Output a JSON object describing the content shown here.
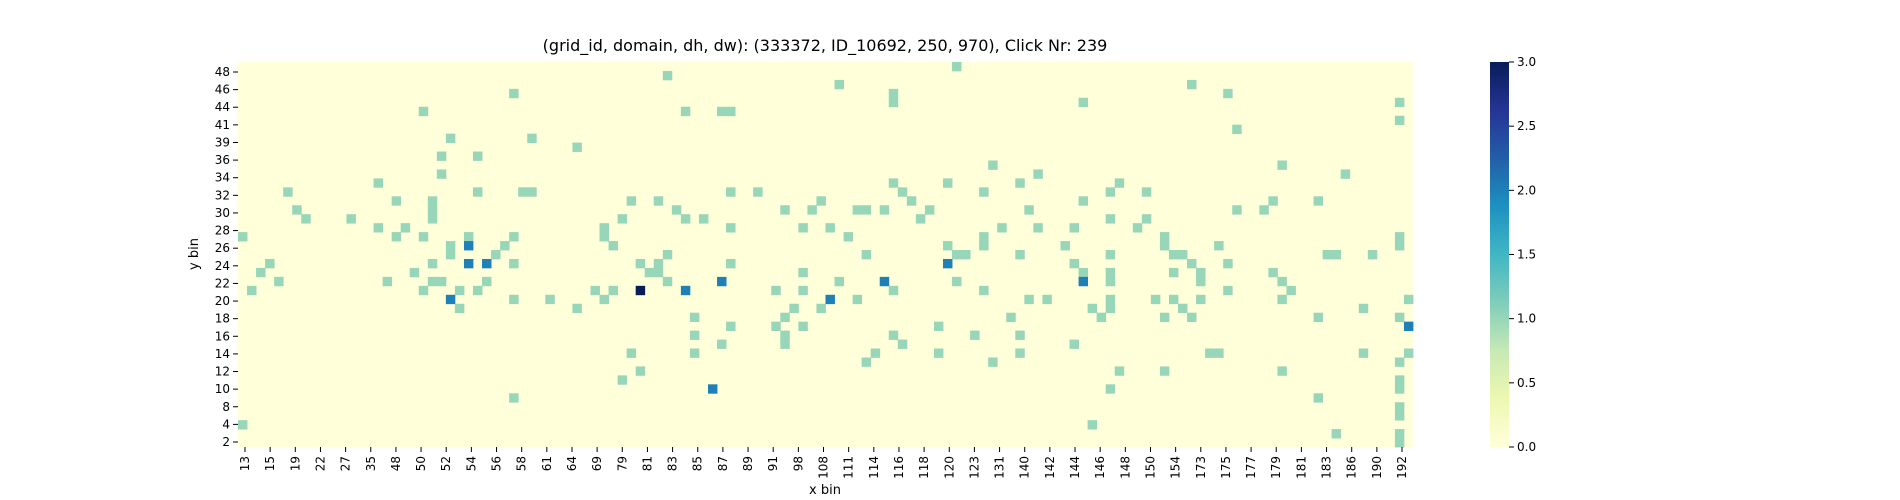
{
  "chart_data": {
    "type": "heatmap",
    "title": "(grid_id, domain, dh, dw): (333372, ID_10692, 250, 970), Click Nr: 239",
    "xlabel": "x bin",
    "ylabel": "y bin",
    "x_tick_labels": [
      "13",
      "15",
      "19",
      "22",
      "27",
      "35",
      "48",
      "50",
      "52",
      "54",
      "56",
      "58",
      "61",
      "64",
      "69",
      "79",
      "81",
      "83",
      "85",
      "87",
      "89",
      "91",
      "98",
      "108",
      "111",
      "114",
      "116",
      "118",
      "120",
      "123",
      "131",
      "140",
      "142",
      "144",
      "146",
      "148",
      "150",
      "154",
      "173",
      "175",
      "177",
      "179",
      "181",
      "183",
      "186",
      "190",
      "192"
    ],
    "y_tick_labels": [
      "48",
      "46",
      "44",
      "41",
      "39",
      "36",
      "34",
      "32",
      "30",
      "28",
      "26",
      "24",
      "22",
      "20",
      "18",
      "16",
      "14",
      "12",
      "10",
      "8",
      "4",
      "2"
    ],
    "n_columns": 130,
    "n_rows": 43,
    "colorscale": "YlGnBu",
    "colorbar": {
      "min": 0.0,
      "max": 3.0,
      "ticks": [
        "0.0",
        "0.5",
        "1.0",
        "1.5",
        "2.0",
        "2.5",
        "3.0"
      ]
    },
    "background_value": 0,
    "cells": [
      {
        "col": 79,
        "row": 0,
        "value": 1
      },
      {
        "col": 47,
        "row": 1,
        "value": 1
      },
      {
        "col": 66,
        "row": 2,
        "value": 1
      },
      {
        "col": 105,
        "row": 2,
        "value": 1
      },
      {
        "col": 30,
        "row": 3,
        "value": 1
      },
      {
        "col": 72,
        "row": 3,
        "value": 1
      },
      {
        "col": 109,
        "row": 3,
        "value": 1
      },
      {
        "col": 72,
        "row": 4,
        "value": 1
      },
      {
        "col": 93,
        "row": 4,
        "value": 1
      },
      {
        "col": 128,
        "row": 4,
        "value": 1
      },
      {
        "col": 20,
        "row": 5,
        "value": 1
      },
      {
        "col": 49,
        "row": 5,
        "value": 1
      },
      {
        "col": 53,
        "row": 5,
        "value": 1
      },
      {
        "col": 54,
        "row": 5,
        "value": 1
      },
      {
        "col": 128,
        "row": 6,
        "value": 1
      },
      {
        "col": 110,
        "row": 7,
        "value": 1
      },
      {
        "col": 23,
        "row": 8,
        "value": 1
      },
      {
        "col": 32,
        "row": 8,
        "value": 1
      },
      {
        "col": 37,
        "row": 9,
        "value": 1
      },
      {
        "col": 22,
        "row": 10,
        "value": 1
      },
      {
        "col": 26,
        "row": 10,
        "value": 1
      },
      {
        "col": 83,
        "row": 11,
        "value": 1
      },
      {
        "col": 115,
        "row": 11,
        "value": 1
      },
      {
        "col": 22,
        "row": 12,
        "value": 1
      },
      {
        "col": 88,
        "row": 12,
        "value": 1
      },
      {
        "col": 122,
        "row": 12,
        "value": 1
      },
      {
        "col": 15,
        "row": 13,
        "value": 1
      },
      {
        "col": 72,
        "row": 13,
        "value": 1
      },
      {
        "col": 78,
        "row": 13,
        "value": 1
      },
      {
        "col": 86,
        "row": 13,
        "value": 1
      },
      {
        "col": 97,
        "row": 13,
        "value": 1
      },
      {
        "col": 5,
        "row": 14,
        "value": 1
      },
      {
        "col": 26,
        "row": 14,
        "value": 1
      },
      {
        "col": 31,
        "row": 14,
        "value": 1
      },
      {
        "col": 32,
        "row": 14,
        "value": 1
      },
      {
        "col": 54,
        "row": 14,
        "value": 1
      },
      {
        "col": 57,
        "row": 14,
        "value": 1
      },
      {
        "col": 73,
        "row": 14,
        "value": 1
      },
      {
        "col": 82,
        "row": 14,
        "value": 1
      },
      {
        "col": 96,
        "row": 14,
        "value": 1
      },
      {
        "col": 100,
        "row": 14,
        "value": 1
      },
      {
        "col": 17,
        "row": 15,
        "value": 1
      },
      {
        "col": 21,
        "row": 15,
        "value": 1
      },
      {
        "col": 43,
        "row": 15,
        "value": 1
      },
      {
        "col": 46,
        "row": 15,
        "value": 1
      },
      {
        "col": 64,
        "row": 15,
        "value": 1
      },
      {
        "col": 74,
        "row": 15,
        "value": 1
      },
      {
        "col": 93,
        "row": 15,
        "value": 1
      },
      {
        "col": 114,
        "row": 15,
        "value": 1
      },
      {
        "col": 119,
        "row": 15,
        "value": 1
      },
      {
        "col": 6,
        "row": 16,
        "value": 1
      },
      {
        "col": 21,
        "row": 16,
        "value": 1
      },
      {
        "col": 48,
        "row": 16,
        "value": 1
      },
      {
        "col": 60,
        "row": 16,
        "value": 1
      },
      {
        "col": 63,
        "row": 16,
        "value": 1
      },
      {
        "col": 68,
        "row": 16,
        "value": 1
      },
      {
        "col": 69,
        "row": 16,
        "value": 1
      },
      {
        "col": 71,
        "row": 16,
        "value": 1
      },
      {
        "col": 76,
        "row": 16,
        "value": 1
      },
      {
        "col": 87,
        "row": 16,
        "value": 1
      },
      {
        "col": 110,
        "row": 16,
        "value": 1
      },
      {
        "col": 113,
        "row": 16,
        "value": 1
      },
      {
        "col": 7,
        "row": 17,
        "value": 1
      },
      {
        "col": 12,
        "row": 17,
        "value": 1
      },
      {
        "col": 21,
        "row": 17,
        "value": 1
      },
      {
        "col": 42,
        "row": 17,
        "value": 1
      },
      {
        "col": 49,
        "row": 17,
        "value": 1
      },
      {
        "col": 51,
        "row": 17,
        "value": 1
      },
      {
        "col": 75,
        "row": 17,
        "value": 1
      },
      {
        "col": 100,
        "row": 17,
        "value": 1
      },
      {
        "col": 96,
        "row": 17,
        "value": 1
      },
      {
        "col": 15,
        "row": 18,
        "value": 1
      },
      {
        "col": 18,
        "row": 18,
        "value": 1
      },
      {
        "col": 40,
        "row": 18,
        "value": 1
      },
      {
        "col": 54,
        "row": 18,
        "value": 1
      },
      {
        "col": 62,
        "row": 18,
        "value": 1
      },
      {
        "col": 65,
        "row": 18,
        "value": 1
      },
      {
        "col": 84,
        "row": 18,
        "value": 1
      },
      {
        "col": 88,
        "row": 18,
        "value": 1
      },
      {
        "col": 92,
        "row": 18,
        "value": 1
      },
      {
        "col": 99,
        "row": 18,
        "value": 1
      },
      {
        "col": 0,
        "row": 19,
        "value": 1
      },
      {
        "col": 17,
        "row": 19,
        "value": 1
      },
      {
        "col": 20,
        "row": 19,
        "value": 1
      },
      {
        "col": 25,
        "row": 19,
        "value": 1
      },
      {
        "col": 30,
        "row": 19,
        "value": 1
      },
      {
        "col": 40,
        "row": 19,
        "value": 1
      },
      {
        "col": 67,
        "row": 19,
        "value": 1
      },
      {
        "col": 82,
        "row": 19,
        "value": 1
      },
      {
        "col": 102,
        "row": 19,
        "value": 1
      },
      {
        "col": 128,
        "row": 19,
        "value": 1
      },
      {
        "col": 23,
        "row": 20,
        "value": 1
      },
      {
        "col": 29,
        "row": 20,
        "value": 1
      },
      {
        "col": 41,
        "row": 20,
        "value": 1
      },
      {
        "col": 78,
        "row": 20,
        "value": 1
      },
      {
        "col": 82,
        "row": 20,
        "value": 1
      },
      {
        "col": 91,
        "row": 20,
        "value": 1
      },
      {
        "col": 102,
        "row": 20,
        "value": 1
      },
      {
        "col": 108,
        "row": 20,
        "value": 1
      },
      {
        "col": 128,
        "row": 20,
        "value": 1
      },
      {
        "col": 23,
        "row": 21,
        "value": 1
      },
      {
        "col": 28,
        "row": 21,
        "value": 1
      },
      {
        "col": 47,
        "row": 21,
        "value": 1
      },
      {
        "col": 69,
        "row": 21,
        "value": 1
      },
      {
        "col": 79,
        "row": 21,
        "value": 1
      },
      {
        "col": 80,
        "row": 21,
        "value": 1
      },
      {
        "col": 86,
        "row": 21,
        "value": 1
      },
      {
        "col": 96,
        "row": 21,
        "value": 1
      },
      {
        "col": 103,
        "row": 21,
        "value": 1
      },
      {
        "col": 104,
        "row": 21,
        "value": 1
      },
      {
        "col": 120,
        "row": 21,
        "value": 1
      },
      {
        "col": 121,
        "row": 21,
        "value": 1
      },
      {
        "col": 125,
        "row": 21,
        "value": 1
      },
      {
        "col": 3,
        "row": 22,
        "value": 1
      },
      {
        "col": 21,
        "row": 22,
        "value": 1
      },
      {
        "col": 30,
        "row": 22,
        "value": 1
      },
      {
        "col": 44,
        "row": 22,
        "value": 1
      },
      {
        "col": 46,
        "row": 22,
        "value": 1
      },
      {
        "col": 54,
        "row": 22,
        "value": 1
      },
      {
        "col": 92,
        "row": 22,
        "value": 1
      },
      {
        "col": 105,
        "row": 22,
        "value": 1
      },
      {
        "col": 109,
        "row": 22,
        "value": 1
      },
      {
        "col": 2,
        "row": 23,
        "value": 1
      },
      {
        "col": 19,
        "row": 23,
        "value": 1
      },
      {
        "col": 45,
        "row": 23,
        "value": 1
      },
      {
        "col": 46,
        "row": 23,
        "value": 1
      },
      {
        "col": 62,
        "row": 23,
        "value": 1
      },
      {
        "col": 93,
        "row": 23,
        "value": 1
      },
      {
        "col": 96,
        "row": 23,
        "value": 1
      },
      {
        "col": 103,
        "row": 23,
        "value": 1
      },
      {
        "col": 106,
        "row": 23,
        "value": 1
      },
      {
        "col": 114,
        "row": 23,
        "value": 1
      },
      {
        "col": 4,
        "row": 24,
        "value": 1
      },
      {
        "col": 16,
        "row": 24,
        "value": 1
      },
      {
        "col": 21,
        "row": 24,
        "value": 1
      },
      {
        "col": 22,
        "row": 24,
        "value": 1
      },
      {
        "col": 27,
        "row": 24,
        "value": 1
      },
      {
        "col": 47,
        "row": 24,
        "value": 1
      },
      {
        "col": 66,
        "row": 24,
        "value": 1
      },
      {
        "col": 79,
        "row": 24,
        "value": 1
      },
      {
        "col": 96,
        "row": 24,
        "value": 1
      },
      {
        "col": 106,
        "row": 24,
        "value": 1
      },
      {
        "col": 115,
        "row": 24,
        "value": 1
      },
      {
        "col": 1,
        "row": 25,
        "value": 1
      },
      {
        "col": 20,
        "row": 25,
        "value": 1
      },
      {
        "col": 24,
        "row": 25,
        "value": 1
      },
      {
        "col": 26,
        "row": 25,
        "value": 1
      },
      {
        "col": 39,
        "row": 25,
        "value": 1
      },
      {
        "col": 41,
        "row": 25,
        "value": 1
      },
      {
        "col": 59,
        "row": 25,
        "value": 1
      },
      {
        "col": 62,
        "row": 25,
        "value": 1
      },
      {
        "col": 72,
        "row": 25,
        "value": 1
      },
      {
        "col": 82,
        "row": 25,
        "value": 1
      },
      {
        "col": 109,
        "row": 25,
        "value": 1
      },
      {
        "col": 116,
        "row": 25,
        "value": 1
      },
      {
        "col": 30,
        "row": 26,
        "value": 1
      },
      {
        "col": 34,
        "row": 26,
        "value": 1
      },
      {
        "col": 40,
        "row": 26,
        "value": 1
      },
      {
        "col": 68,
        "row": 26,
        "value": 1
      },
      {
        "col": 87,
        "row": 26,
        "value": 1
      },
      {
        "col": 89,
        "row": 26,
        "value": 1
      },
      {
        "col": 96,
        "row": 26,
        "value": 1
      },
      {
        "col": 101,
        "row": 26,
        "value": 1
      },
      {
        "col": 103,
        "row": 26,
        "value": 1
      },
      {
        "col": 106,
        "row": 26,
        "value": 1
      },
      {
        "col": 115,
        "row": 26,
        "value": 1
      },
      {
        "col": 129,
        "row": 26,
        "value": 1
      },
      {
        "col": 24,
        "row": 27,
        "value": 1
      },
      {
        "col": 37,
        "row": 27,
        "value": 1
      },
      {
        "col": 61,
        "row": 27,
        "value": 1
      },
      {
        "col": 64,
        "row": 27,
        "value": 1
      },
      {
        "col": 94,
        "row": 27,
        "value": 1
      },
      {
        "col": 96,
        "row": 27,
        "value": 1
      },
      {
        "col": 104,
        "row": 27,
        "value": 1
      },
      {
        "col": 124,
        "row": 27,
        "value": 1
      },
      {
        "col": 50,
        "row": 28,
        "value": 1
      },
      {
        "col": 60,
        "row": 28,
        "value": 1
      },
      {
        "col": 85,
        "row": 28,
        "value": 1
      },
      {
        "col": 95,
        "row": 28,
        "value": 1
      },
      {
        "col": 102,
        "row": 28,
        "value": 1
      },
      {
        "col": 105,
        "row": 28,
        "value": 1
      },
      {
        "col": 119,
        "row": 28,
        "value": 1
      },
      {
        "col": 128,
        "row": 28,
        "value": 1
      },
      {
        "col": 54,
        "row": 29,
        "value": 1
      },
      {
        "col": 59,
        "row": 29,
        "value": 1
      },
      {
        "col": 62,
        "row": 29,
        "value": 1
      },
      {
        "col": 77,
        "row": 29,
        "value": 1
      },
      {
        "col": 50,
        "row": 30,
        "value": 1
      },
      {
        "col": 60,
        "row": 30,
        "value": 1
      },
      {
        "col": 72,
        "row": 30,
        "value": 1
      },
      {
        "col": 81,
        "row": 30,
        "value": 1
      },
      {
        "col": 86,
        "row": 30,
        "value": 1
      },
      {
        "col": 53,
        "row": 31,
        "value": 1
      },
      {
        "col": 60,
        "row": 31,
        "value": 1
      },
      {
        "col": 73,
        "row": 31,
        "value": 1
      },
      {
        "col": 92,
        "row": 31,
        "value": 1
      },
      {
        "col": 43,
        "row": 32,
        "value": 1
      },
      {
        "col": 50,
        "row": 32,
        "value": 1
      },
      {
        "col": 70,
        "row": 32,
        "value": 1
      },
      {
        "col": 77,
        "row": 32,
        "value": 1
      },
      {
        "col": 86,
        "row": 32,
        "value": 1
      },
      {
        "col": 107,
        "row": 32,
        "value": 1
      },
      {
        "col": 108,
        "row": 32,
        "value": 1
      },
      {
        "col": 124,
        "row": 32,
        "value": 1
      },
      {
        "col": 129,
        "row": 32,
        "value": 1
      },
      {
        "col": 69,
        "row": 33,
        "value": 1
      },
      {
        "col": 83,
        "row": 33,
        "value": 1
      },
      {
        "col": 128,
        "row": 33,
        "value": 1
      },
      {
        "col": 44,
        "row": 34,
        "value": 1
      },
      {
        "col": 97,
        "row": 34,
        "value": 1
      },
      {
        "col": 102,
        "row": 34,
        "value": 1
      },
      {
        "col": 115,
        "row": 34,
        "value": 1
      },
      {
        "col": 42,
        "row": 35,
        "value": 1
      },
      {
        "col": 128,
        "row": 35,
        "value": 1
      },
      {
        "col": 96,
        "row": 36,
        "value": 1
      },
      {
        "col": 128,
        "row": 36,
        "value": 1
      },
      {
        "col": 30,
        "row": 37,
        "value": 1
      },
      {
        "col": 119,
        "row": 37,
        "value": 1
      },
      {
        "col": 128,
        "row": 38,
        "value": 1
      },
      {
        "col": 128,
        "row": 39,
        "value": 1
      },
      {
        "col": 0,
        "row": 40,
        "value": 1
      },
      {
        "col": 94,
        "row": 40,
        "value": 1
      },
      {
        "col": 121,
        "row": 41,
        "value": 1
      },
      {
        "col": 128,
        "row": 41,
        "value": 1
      },
      {
        "col": 128,
        "row": 42,
        "value": 1
      },
      {
        "col": 25,
        "row": 20,
        "value": 2
      },
      {
        "col": 25,
        "row": 22,
        "value": 2
      },
      {
        "col": 27,
        "row": 22,
        "value": 2
      },
      {
        "col": 53,
        "row": 24,
        "value": 2
      },
      {
        "col": 71,
        "row": 24,
        "value": 2
      },
      {
        "col": 93,
        "row": 24,
        "value": 2
      },
      {
        "col": 49,
        "row": 25,
        "value": 2
      },
      {
        "col": 23,
        "row": 26,
        "value": 2
      },
      {
        "col": 65,
        "row": 26,
        "value": 2
      },
      {
        "col": 52,
        "row": 36,
        "value": 2
      },
      {
        "col": 78,
        "row": 22,
        "value": 2
      },
      {
        "col": 129,
        "row": 29,
        "value": 2
      },
      {
        "col": 44,
        "row": 25,
        "value": 3
      }
    ]
  }
}
